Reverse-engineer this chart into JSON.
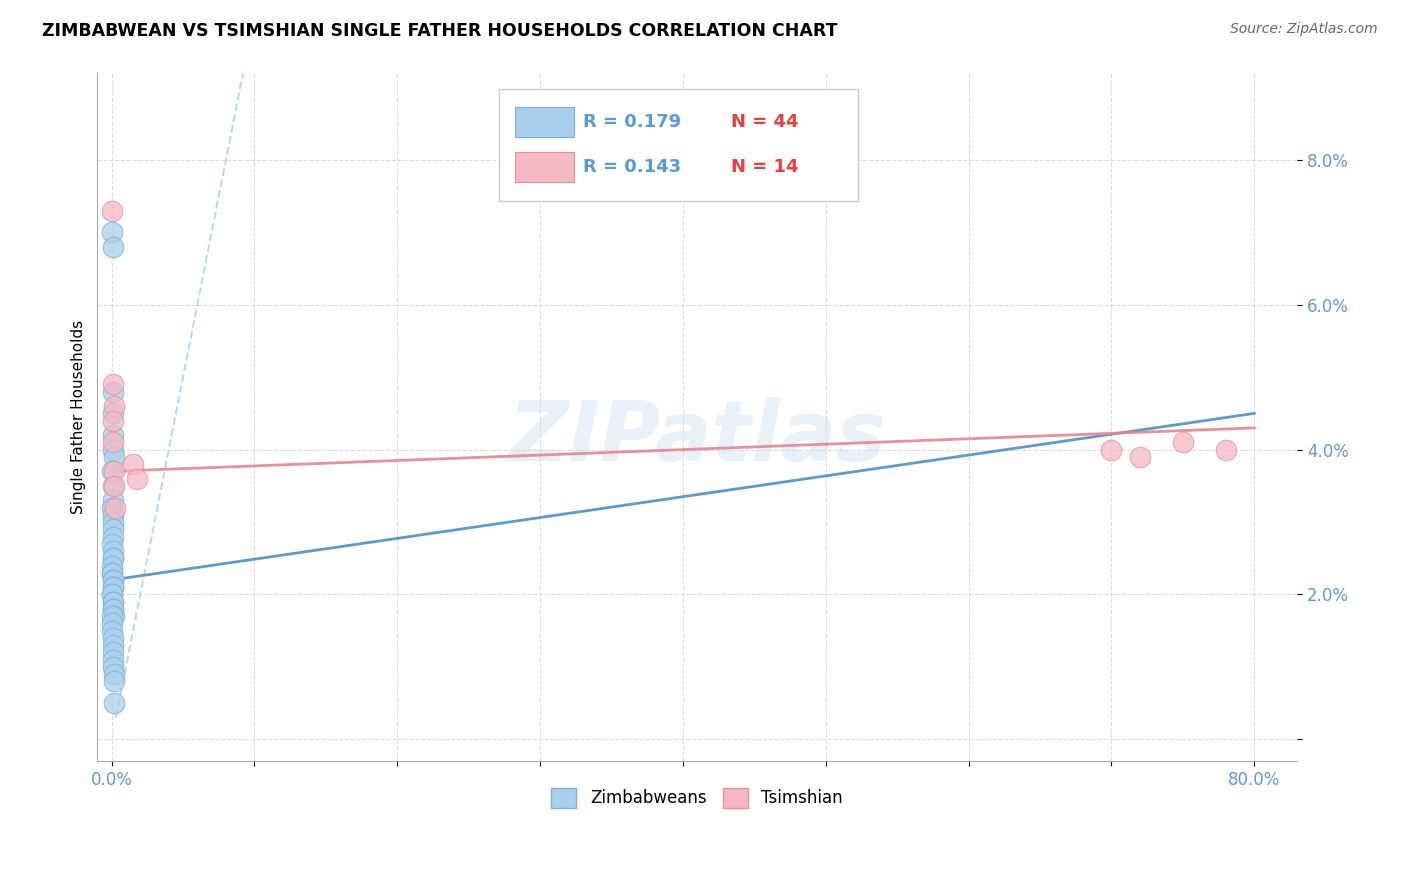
{
  "title": "ZIMBABWEAN VS TSIMSHIAN SINGLE FATHER HOUSEHOLDS CORRELATION CHART",
  "source": "Source: ZipAtlas.com",
  "ylabel": "Single Father Households",
  "xlabel_ticks_labels": [
    "0.0%",
    "80.0%"
  ],
  "xlabel_ticks_vals": [
    0.0,
    80.0
  ],
  "ylabel_ticks_labels": [
    "8.0%",
    "6.0%",
    "4.0%",
    "2.0%"
  ],
  "ylabel_ticks_vals": [
    8.0,
    6.0,
    4.0,
    2.0
  ],
  "xlim": [
    -1.0,
    83.0
  ],
  "ylim": [
    -0.3,
    9.2
  ],
  "R_zimbabwean": 0.179,
  "N_zimbabwean": 44,
  "R_tsimshian": 0.143,
  "N_tsimshian": 14,
  "blue_color": "#aacfec",
  "pink_color": "#f5b8c4",
  "blue_edge_color": "#7ab3d8",
  "pink_edge_color": "#e8909a",
  "blue_line_color": "#7ab3d8",
  "pink_line_color": "#e8848e",
  "legend_R_color": "#5b9bd5",
  "legend_N_color": "#e84040",
  "watermark": "ZIPatlas",
  "zimbabwean_x": [
    0.05,
    0.08,
    0.12,
    0.09,
    0.07,
    0.1,
    0.15,
    0.06,
    0.11,
    0.13,
    0.04,
    0.08,
    0.1,
    0.09,
    0.07,
    0.06,
    0.08,
    0.1,
    0.12,
    0.05,
    0.04,
    0.06,
    0.07,
    0.08,
    0.09,
    0.1,
    0.05,
    0.06,
    0.07,
    0.08,
    0.1,
    0.12,
    0.15,
    0.04,
    0.05,
    0.06,
    0.07,
    0.08,
    0.09,
    0.1,
    0.12,
    0.14,
    0.15,
    0.18
  ],
  "zimbabwean_y": [
    7.0,
    6.8,
    4.8,
    4.5,
    4.2,
    4.0,
    3.9,
    3.7,
    3.5,
    3.3,
    3.2,
    3.1,
    3.0,
    2.9,
    2.8,
    2.7,
    2.6,
    2.5,
    2.5,
    2.4,
    2.3,
    2.3,
    2.2,
    2.2,
    2.1,
    2.1,
    2.0,
    2.0,
    1.9,
    1.9,
    1.8,
    1.8,
    1.7,
    1.7,
    1.6,
    1.5,
    1.4,
    1.3,
    1.2,
    1.1,
    1.0,
    0.9,
    0.8,
    0.5
  ],
  "tsimshian_x": [
    0.05,
    0.1,
    0.15,
    0.12,
    0.08,
    0.2,
    0.18,
    0.25,
    1.5,
    1.8,
    70.0,
    72.0,
    75.0,
    78.0
  ],
  "tsimshian_y": [
    7.3,
    4.9,
    4.6,
    4.4,
    4.1,
    3.7,
    3.5,
    3.2,
    3.8,
    3.6,
    4.0,
    3.9,
    4.1,
    4.0
  ],
  "blue_trendline_x": [
    0.0,
    80.0
  ],
  "blue_trendline_y": [
    2.2,
    4.5
  ],
  "blue_dashline_x": [
    0.3,
    80.0
  ],
  "blue_dashline_y": [
    0.3,
    80.0
  ],
  "pink_trendline_x": [
    0.0,
    80.0
  ],
  "pink_trendline_y": [
    3.7,
    4.3
  ]
}
